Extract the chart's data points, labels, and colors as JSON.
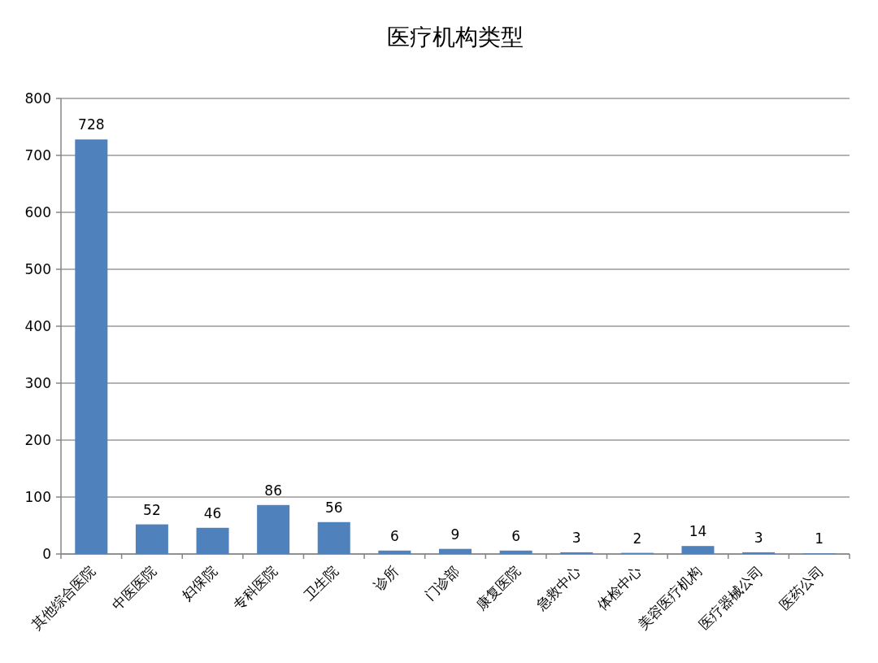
{
  "chart_data": {
    "type": "bar",
    "title": "医疗机构类型",
    "categories": [
      "其他综合医院",
      "中医医院",
      "妇保院",
      "专科医院",
      "卫生院",
      "诊所",
      "门诊部",
      "康复医院",
      "急救中心",
      "体检中心",
      "美容医疗机构",
      "医疗器械公司",
      "医药公司"
    ],
    "values": [
      728,
      52,
      46,
      86,
      56,
      6,
      9,
      6,
      3,
      2,
      14,
      3,
      1
    ],
    "color": "#4f81bd",
    "ylim": [
      0,
      800
    ],
    "yticks": [
      0,
      100,
      200,
      300,
      400,
      500,
      600,
      700,
      800
    ],
    "grid": "y",
    "data_labels": true
  }
}
